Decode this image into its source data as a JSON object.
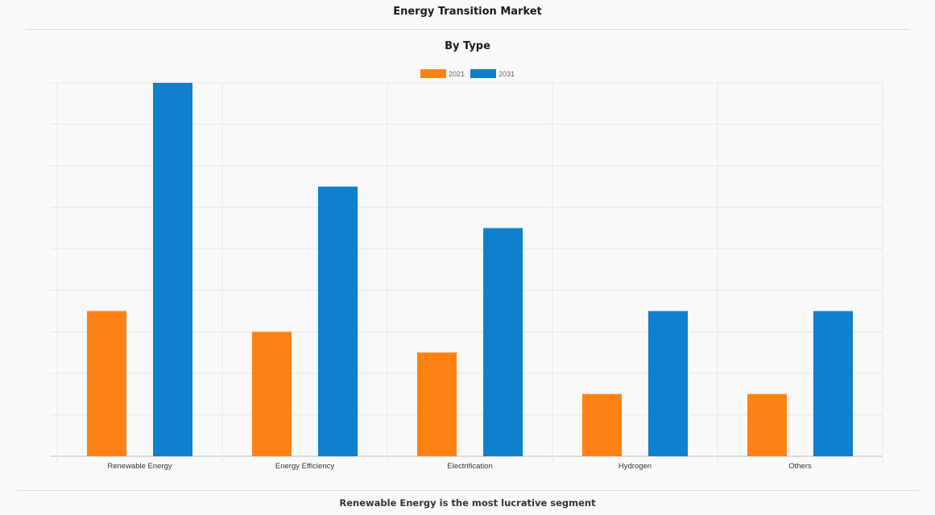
{
  "header": {
    "title": "Energy Transition Market",
    "subtitle": "By Type"
  },
  "footer": {
    "caption": "Renewable Energy is the most lucrative segment"
  },
  "chart_data": {
    "type": "bar",
    "title": "By Type",
    "categories": [
      "Renewable Energy",
      "Energy Efficiency",
      "Electrification",
      "Hydrogen",
      "Others"
    ],
    "series": [
      {
        "name": "2021",
        "values": [
          3.5,
          3.0,
          2.5,
          1.5,
          1.5
        ],
        "color": "#fe8114"
      },
      {
        "name": "2031",
        "values": [
          9.0,
          6.5,
          5.5,
          3.5,
          3.5
        ],
        "color": "#0f80cb"
      }
    ],
    "xlabel": "",
    "ylabel": "",
    "ylim": [
      0,
      9
    ],
    "y_tick_step": 1,
    "y_tick_labels_visible": false,
    "grid": true,
    "legend_position": "top-center"
  }
}
